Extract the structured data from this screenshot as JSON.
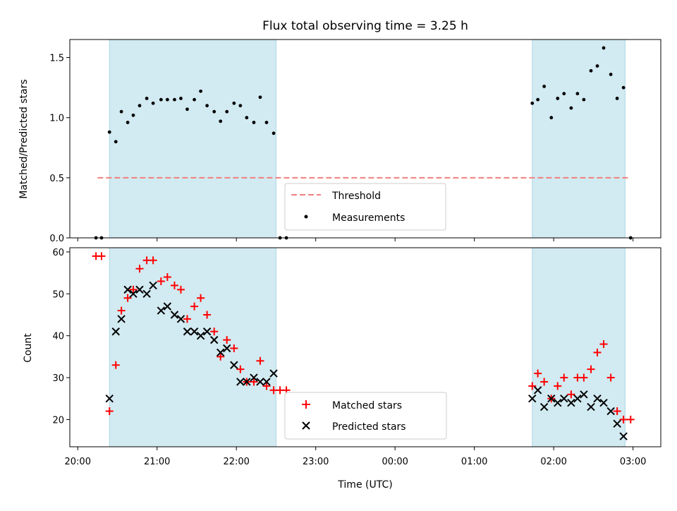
{
  "chart_data": [
    {
      "type": "scatter",
      "title": "Flux total observing time = 3.25 h",
      "ylabel": "Matched/Predicted stars",
      "xlabel": "",
      "xlim": [
        -0.1,
        7.35
      ],
      "ylim": [
        0,
        1.65
      ],
      "yticks": [
        0.0,
        0.5,
        1.0,
        1.5
      ],
      "ytick_labels": [
        "0.0",
        "0.5",
        "1.0",
        "1.5"
      ],
      "shaded_intervals": [
        [
          0.4,
          2.5
        ],
        [
          5.73,
          6.9
        ]
      ],
      "shade_color": "#add8e6",
      "threshold": {
        "name": "Threshold",
        "y": 0.5,
        "x_range": [
          0.25,
          6.95
        ],
        "color": "#f08080"
      },
      "series": [
        {
          "name": "Measurements",
          "marker": "dot",
          "color": "#000000",
          "x": [
            0.23,
            0.3,
            0.4,
            0.48,
            0.55,
            0.63,
            0.7,
            0.78,
            0.87,
            0.95,
            1.05,
            1.13,
            1.22,
            1.3,
            1.38,
            1.47,
            1.55,
            1.63,
            1.72,
            1.8,
            1.88,
            1.97,
            2.05,
            2.13,
            2.22,
            2.3,
            2.38,
            2.47,
            2.55,
            2.63,
            5.73,
            5.8,
            5.88,
            5.97,
            6.05,
            6.13,
            6.22,
            6.3,
            6.38,
            6.47,
            6.55,
            6.63,
            6.72,
            6.8,
            6.88,
            6.97
          ],
          "y": [
            0.0,
            0.0,
            0.88,
            0.8,
            1.05,
            0.96,
            1.02,
            1.1,
            1.16,
            1.12,
            1.15,
            1.15,
            1.15,
            1.16,
            1.07,
            1.15,
            1.22,
            1.1,
            1.05,
            0.97,
            1.05,
            1.12,
            1.1,
            1.0,
            0.96,
            1.17,
            0.96,
            0.87,
            0.0,
            0.0,
            1.12,
            1.15,
            1.26,
            1.0,
            1.16,
            1.2,
            1.08,
            1.2,
            1.15,
            1.39,
            1.43,
            1.58,
            1.36,
            1.16,
            1.25,
            0.0
          ]
        }
      ],
      "legend": {
        "placement": "lower-center",
        "entries": [
          "Threshold",
          "Measurements"
        ]
      }
    },
    {
      "type": "scatter",
      "title": "",
      "xlabel": "Time (UTC)",
      "ylabel": "Count",
      "xlim": [
        -0.1,
        7.35
      ],
      "ylim": [
        13.5,
        61
      ],
      "yticks": [
        20,
        30,
        40,
        50,
        60
      ],
      "ytick_labels": [
        "20",
        "30",
        "40",
        "50",
        "60"
      ],
      "xticks": [
        0,
        1,
        2,
        3,
        4,
        5,
        6,
        7
      ],
      "xtick_labels": [
        "20:00",
        "21:00",
        "22:00",
        "23:00",
        "00:00",
        "01:00",
        "02:00",
        "03:00"
      ],
      "shaded_intervals": [
        [
          0.4,
          2.5
        ],
        [
          5.73,
          6.9
        ]
      ],
      "shade_color": "#add8e6",
      "series": [
        {
          "name": "Matched stars",
          "marker": "plus",
          "color": "#ff0000",
          "x": [
            0.23,
            0.3,
            0.4,
            0.48,
            0.55,
            0.63,
            0.7,
            0.78,
            0.87,
            0.95,
            1.05,
            1.13,
            1.22,
            1.3,
            1.38,
            1.47,
            1.55,
            1.63,
            1.72,
            1.8,
            1.88,
            1.97,
            2.05,
            2.13,
            2.22,
            2.3,
            2.38,
            2.47,
            2.55,
            2.63,
            5.73,
            5.8,
            5.88,
            5.97,
            6.05,
            6.13,
            6.22,
            6.3,
            6.38,
            6.47,
            6.55,
            6.63,
            6.72,
            6.8,
            6.88,
            6.97
          ],
          "y": [
            59,
            59,
            22,
            33,
            46,
            49,
            51,
            56,
            58,
            58,
            53,
            54,
            52,
            51,
            44,
            47,
            49,
            45,
            41,
            35,
            39,
            37,
            32,
            29,
            29,
            34,
            28,
            27,
            27,
            27,
            28,
            31,
            29,
            25,
            28,
            30,
            26,
            30,
            30,
            32,
            36,
            38,
            30,
            22,
            20,
            20
          ]
        },
        {
          "name": "Predicted stars",
          "marker": "x",
          "color": "#000000",
          "x": [
            0.4,
            0.48,
            0.55,
            0.63,
            0.7,
            0.78,
            0.87,
            0.95,
            1.05,
            1.13,
            1.22,
            1.3,
            1.38,
            1.47,
            1.55,
            1.63,
            1.72,
            1.8,
            1.88,
            1.97,
            2.05,
            2.13,
            2.22,
            2.3,
            2.38,
            2.47,
            5.73,
            5.8,
            5.88,
            5.97,
            6.05,
            6.13,
            6.22,
            6.3,
            6.38,
            6.47,
            6.55,
            6.63,
            6.72,
            6.8,
            6.88
          ],
          "y": [
            25,
            41,
            44,
            51,
            50,
            51,
            50,
            52,
            46,
            47,
            45,
            44,
            41,
            41,
            40,
            41,
            39,
            36,
            37,
            33,
            29,
            29,
            30,
            29,
            29,
            31,
            25,
            27,
            23,
            25,
            24,
            25,
            24,
            25,
            26,
            23,
            25,
            24,
            22,
            19,
            16
          ]
        }
      ],
      "legend": {
        "placement": "lower-center",
        "entries": [
          "Matched stars",
          "Predicted stars"
        ]
      }
    }
  ]
}
